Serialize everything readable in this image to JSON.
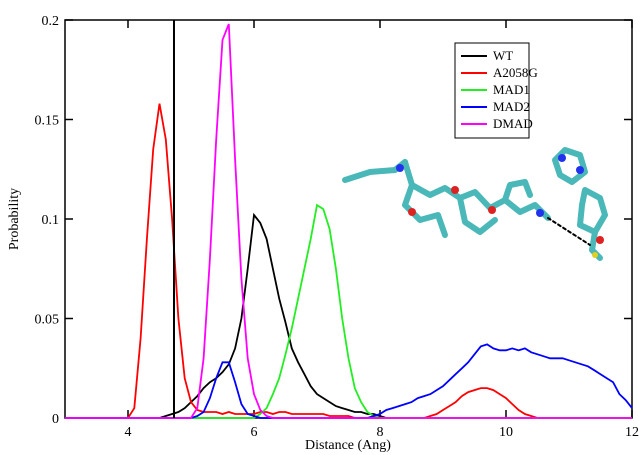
{
  "chart_data": {
    "type": "line",
    "x_label": "Distance (Ang)",
    "y_label": "Probability",
    "xlim": [
      3,
      12
    ],
    "ylim": [
      0,
      0.2
    ],
    "xticks": [
      4,
      6,
      8,
      10,
      12
    ],
    "yticks": [
      0,
      0.05,
      0.1,
      0.15,
      0.2
    ],
    "reference_x": 4.73,
    "reference_color": "#000000",
    "legend": "upper right",
    "x": [
      3,
      3.9,
      4.0,
      4.1,
      4.2,
      4.3,
      4.4,
      4.5,
      4.6,
      4.7,
      4.8,
      4.9,
      5.0,
      5.1,
      5.2,
      5.3,
      5.4,
      5.5,
      5.6,
      5.7,
      5.8,
      5.9,
      6.0,
      6.1,
      6.2,
      6.3,
      6.4,
      6.5,
      6.6,
      6.7,
      6.8,
      6.9,
      7.0,
      7.1,
      7.2,
      7.3,
      7.4,
      7.5,
      7.6,
      7.7,
      7.8,
      7.9,
      8.0,
      8.1,
      8.2,
      8.3,
      8.4,
      8.5,
      8.6,
      8.7,
      8.8,
      8.9,
      9.0,
      9.1,
      9.2,
      9.3,
      9.4,
      9.5,
      9.6,
      9.7,
      9.8,
      9.9,
      10.0,
      10.1,
      10.2,
      10.3,
      10.4,
      10.5,
      10.6,
      10.7,
      10.8,
      10.9,
      11.0,
      11.1,
      11.2,
      11.3,
      11.4,
      11.5,
      11.6,
      11.7,
      11.8,
      11.9,
      12.0
    ],
    "series": [
      {
        "name": "WT",
        "color": "#000000",
        "values": [
          0,
          0,
          0,
          0,
          0,
          0,
          0,
          0,
          0.001,
          0.002,
          0.003,
          0.005,
          0.008,
          0.011,
          0.015,
          0.018,
          0.02,
          0.023,
          0.027,
          0.035,
          0.05,
          0.075,
          0.102,
          0.098,
          0.09,
          0.075,
          0.06,
          0.048,
          0.035,
          0.028,
          0.022,
          0.016,
          0.012,
          0.01,
          0.008,
          0.006,
          0.005,
          0.004,
          0.003,
          0.003,
          0.002,
          0.002,
          0.001,
          0,
          0,
          0,
          0,
          0,
          0,
          0,
          0,
          0,
          0,
          0,
          0,
          0,
          0,
          0,
          0,
          0,
          0,
          0,
          0,
          0,
          0,
          0,
          0,
          0,
          0,
          0,
          0,
          0,
          0,
          0,
          0,
          0,
          0,
          0,
          0,
          0,
          0,
          0,
          0
        ]
      },
      {
        "name": "A2058G",
        "color": "#ff0000",
        "values": [
          0,
          0,
          0,
          0.005,
          0.04,
          0.09,
          0.135,
          0.158,
          0.14,
          0.1,
          0.05,
          0.02,
          0.008,
          0.004,
          0.003,
          0.003,
          0.003,
          0.002,
          0.003,
          0.002,
          0.002,
          0.002,
          0.002,
          0.003,
          0.003,
          0.002,
          0.003,
          0.003,
          0.002,
          0.002,
          0.002,
          0.002,
          0.002,
          0.002,
          0.001,
          0.001,
          0.001,
          0.001,
          0,
          0,
          0,
          0,
          0,
          0,
          0,
          0,
          0,
          0,
          0,
          0,
          0.001,
          0.002,
          0.004,
          0.006,
          0.008,
          0.011,
          0.013,
          0.014,
          0.015,
          0.015,
          0.014,
          0.012,
          0.01,
          0.007,
          0.004,
          0.002,
          0.001,
          0,
          0,
          0,
          0,
          0,
          0,
          0,
          0,
          0,
          0,
          0,
          0,
          0,
          0,
          0,
          0
        ]
      },
      {
        "name": "MAD1",
        "color": "#22ee22",
        "values": [
          0,
          0,
          0,
          0,
          0,
          0,
          0,
          0,
          0,
          0,
          0,
          0,
          0,
          0,
          0,
          0,
          0,
          0,
          0,
          0,
          0,
          0,
          0,
          0.002,
          0.005,
          0.012,
          0.02,
          0.032,
          0.045,
          0.06,
          0.075,
          0.09,
          0.107,
          0.105,
          0.095,
          0.075,
          0.05,
          0.03,
          0.015,
          0.008,
          0.003,
          0.001,
          0,
          0,
          0,
          0,
          0,
          0,
          0,
          0,
          0,
          0,
          0,
          0,
          0,
          0,
          0,
          0,
          0,
          0,
          0,
          0,
          0,
          0,
          0,
          0,
          0,
          0,
          0,
          0,
          0,
          0,
          0,
          0,
          0,
          0,
          0,
          0,
          0,
          0,
          0,
          0,
          0
        ]
      },
      {
        "name": "MAD2",
        "color": "#0000ff",
        "values": [
          0,
          0,
          0,
          0,
          0,
          0,
          0,
          0,
          0,
          0,
          0,
          0,
          0,
          0.001,
          0.003,
          0.01,
          0.02,
          0.028,
          0.028,
          0.018,
          0.007,
          0.002,
          0.001,
          0,
          0,
          0,
          0,
          0,
          0,
          0,
          0,
          0,
          0,
          0,
          0,
          0,
          0,
          0,
          0,
          0,
          0,
          0.001,
          0.002,
          0.004,
          0.005,
          0.006,
          0.007,
          0.008,
          0.01,
          0.011,
          0.012,
          0.014,
          0.016,
          0.019,
          0.022,
          0.025,
          0.028,
          0.032,
          0.036,
          0.037,
          0.035,
          0.034,
          0.034,
          0.035,
          0.034,
          0.035,
          0.033,
          0.032,
          0.031,
          0.03,
          0.03,
          0.03,
          0.029,
          0.028,
          0.027,
          0.026,
          0.024,
          0.022,
          0.02,
          0.018,
          0.012,
          0.009,
          0.005
        ]
      },
      {
        "name": "DMAD",
        "color": "#ff00ff",
        "values": [
          0,
          0,
          0,
          0,
          0,
          0,
          0,
          0,
          0,
          0,
          0,
          0,
          0,
          0.005,
          0.03,
          0.08,
          0.14,
          0.19,
          0.198,
          0.13,
          0.07,
          0.03,
          0.012,
          0.004,
          0.001,
          0,
          0,
          0,
          0,
          0,
          0,
          0,
          0,
          0,
          0,
          0,
          0,
          0,
          0,
          0,
          0,
          0,
          0,
          0,
          0,
          0,
          0,
          0,
          0,
          0,
          0,
          0,
          0,
          0,
          0,
          0,
          0,
          0,
          0,
          0,
          0,
          0,
          0,
          0,
          0,
          0,
          0,
          0,
          0,
          0,
          0,
          0,
          0,
          0,
          0,
          0,
          0,
          0,
          0,
          0,
          0,
          0,
          0
        ]
      }
    ]
  }
}
